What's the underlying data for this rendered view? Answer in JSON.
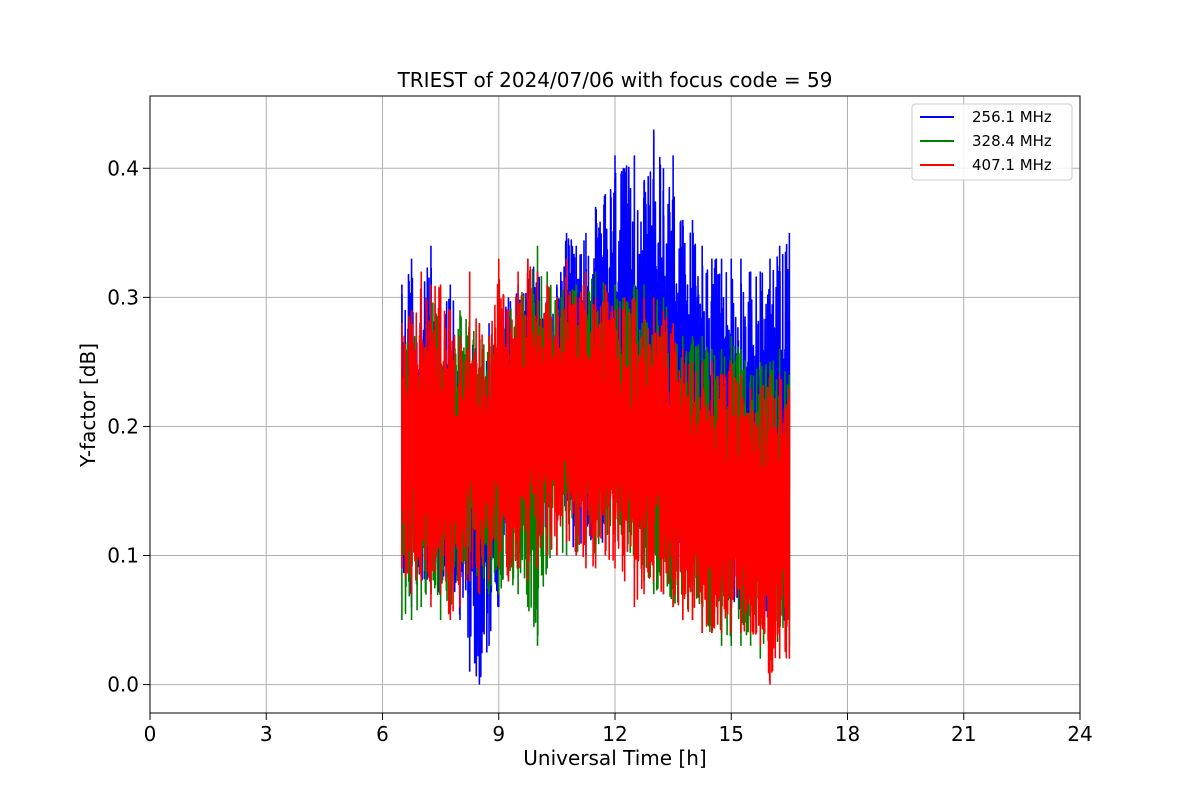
{
  "chart_data": {
    "type": "line",
    "title": "TRIEST of 2024/07/06 with focus code = 59",
    "xlabel": "Universal Time [h]",
    "ylabel": "Y-factor [dB]",
    "xlim": [
      0,
      24
    ],
    "ylim": [
      -0.022,
      0.456
    ],
    "xticks": [
      0,
      3,
      6,
      9,
      12,
      15,
      18,
      21,
      24
    ],
    "xtick_labels": [
      "0",
      "3",
      "6",
      "9",
      "12",
      "15",
      "18",
      "21",
      "24"
    ],
    "yticks": [
      0.0,
      0.1,
      0.2,
      0.3,
      0.4
    ],
    "ytick_labels": [
      "0.0",
      "0.1",
      "0.2",
      "0.3",
      "0.4"
    ],
    "grid": true,
    "legend_position": "top-right",
    "series": [
      {
        "name": "256.1 MHz",
        "color": "#0000ff",
        "x": [
          6.5,
          6.75,
          7.0,
          7.25,
          7.5,
          7.75,
          8.0,
          8.25,
          8.5,
          8.75,
          9.0,
          9.25,
          9.5,
          9.75,
          10.0,
          10.25,
          10.5,
          10.75,
          11.0,
          11.25,
          11.5,
          11.75,
          12.0,
          12.25,
          12.5,
          12.75,
          13.0,
          13.25,
          13.5,
          13.75,
          14.0,
          14.25,
          14.5,
          14.75,
          15.0,
          15.25,
          15.5,
          15.75,
          16.0,
          16.25,
          16.5
        ],
        "upper": [
          0.31,
          0.33,
          0.3,
          0.34,
          0.3,
          0.31,
          0.27,
          0.28,
          0.27,
          0.28,
          0.28,
          0.3,
          0.31,
          0.33,
          0.32,
          0.31,
          0.31,
          0.35,
          0.34,
          0.35,
          0.37,
          0.38,
          0.41,
          0.4,
          0.41,
          0.39,
          0.43,
          0.4,
          0.41,
          0.36,
          0.36,
          0.34,
          0.33,
          0.33,
          0.33,
          0.33,
          0.32,
          0.32,
          0.33,
          0.34,
          0.35
        ],
        "lower": [
          0.09,
          0.06,
          0.08,
          0.07,
          0.07,
          0.06,
          0.05,
          0.01,
          0.0,
          0.03,
          0.06,
          0.09,
          0.09,
          0.1,
          0.1,
          0.12,
          0.13,
          0.12,
          0.1,
          0.1,
          0.12,
          0.1,
          0.12,
          0.11,
          0.11,
          0.09,
          0.12,
          0.11,
          0.08,
          0.09,
          0.08,
          0.09,
          0.08,
          0.06,
          0.05,
          0.06,
          0.05,
          0.06,
          0.04,
          0.05,
          0.05
        ]
      },
      {
        "name": "328.4 MHz",
        "color": "#008000",
        "x": [
          6.5,
          6.75,
          7.0,
          7.25,
          7.5,
          7.75,
          8.0,
          8.25,
          8.5,
          8.75,
          9.0,
          9.25,
          9.5,
          9.75,
          10.0,
          10.25,
          10.5,
          10.75,
          11.0,
          11.25,
          11.5,
          11.75,
          12.0,
          12.25,
          12.5,
          12.75,
          13.0,
          13.25,
          13.5,
          13.75,
          14.0,
          14.25,
          14.5,
          14.75,
          15.0,
          15.25,
          15.5,
          15.75,
          16.0,
          16.25,
          16.5
        ],
        "upper": [
          0.26,
          0.28,
          0.27,
          0.3,
          0.28,
          0.27,
          0.29,
          0.28,
          0.28,
          0.27,
          0.28,
          0.29,
          0.3,
          0.31,
          0.34,
          0.32,
          0.3,
          0.31,
          0.31,
          0.31,
          0.32,
          0.31,
          0.31,
          0.3,
          0.31,
          0.31,
          0.3,
          0.3,
          0.28,
          0.27,
          0.27,
          0.27,
          0.26,
          0.26,
          0.27,
          0.26,
          0.24,
          0.25,
          0.25,
          0.26,
          0.24
        ],
        "lower": [
          0.05,
          0.05,
          0.06,
          0.07,
          0.05,
          0.06,
          0.07,
          0.08,
          0.07,
          0.07,
          0.07,
          0.08,
          0.07,
          0.06,
          0.03,
          0.09,
          0.1,
          0.1,
          0.1,
          0.11,
          0.1,
          0.11,
          0.11,
          0.1,
          0.09,
          0.08,
          0.07,
          0.07,
          0.06,
          0.05,
          0.05,
          0.04,
          0.04,
          0.03,
          0.03,
          0.03,
          0.03,
          0.02,
          0.02,
          0.03,
          0.03
        ]
      },
      {
        "name": "407.1 MHz",
        "color": "#ff0000",
        "x": [
          6.5,
          6.75,
          7.0,
          7.25,
          7.5,
          7.75,
          8.0,
          8.25,
          8.5,
          8.75,
          9.0,
          9.25,
          9.5,
          9.75,
          10.0,
          10.25,
          10.5,
          10.75,
          11.0,
          11.25,
          11.5,
          11.75,
          12.0,
          12.25,
          12.5,
          12.75,
          13.0,
          13.25,
          13.5,
          13.75,
          14.0,
          14.25,
          14.5,
          14.75,
          15.0,
          15.25,
          15.5,
          15.75,
          16.0,
          16.25,
          16.5
        ],
        "upper": [
          0.28,
          0.29,
          0.32,
          0.31,
          0.31,
          0.29,
          0.27,
          0.32,
          0.28,
          0.27,
          0.33,
          0.29,
          0.32,
          0.33,
          0.32,
          0.31,
          0.3,
          0.33,
          0.3,
          0.32,
          0.3,
          0.31,
          0.29,
          0.3,
          0.3,
          0.3,
          0.3,
          0.29,
          0.28,
          0.26,
          0.25,
          0.25,
          0.25,
          0.24,
          0.25,
          0.24,
          0.23,
          0.23,
          0.24,
          0.24,
          0.23
        ],
        "lower": [
          0.09,
          0.07,
          0.08,
          0.06,
          0.07,
          0.05,
          0.06,
          0.08,
          0.07,
          0.08,
          0.09,
          0.08,
          0.09,
          0.08,
          0.09,
          0.1,
          0.1,
          0.11,
          0.1,
          0.09,
          0.09,
          0.1,
          0.09,
          0.08,
          0.06,
          0.07,
          0.08,
          0.07,
          0.06,
          0.05,
          0.05,
          0.04,
          0.04,
          0.04,
          0.04,
          0.04,
          0.04,
          0.03,
          0.0,
          0.02,
          0.02
        ]
      }
    ]
  }
}
